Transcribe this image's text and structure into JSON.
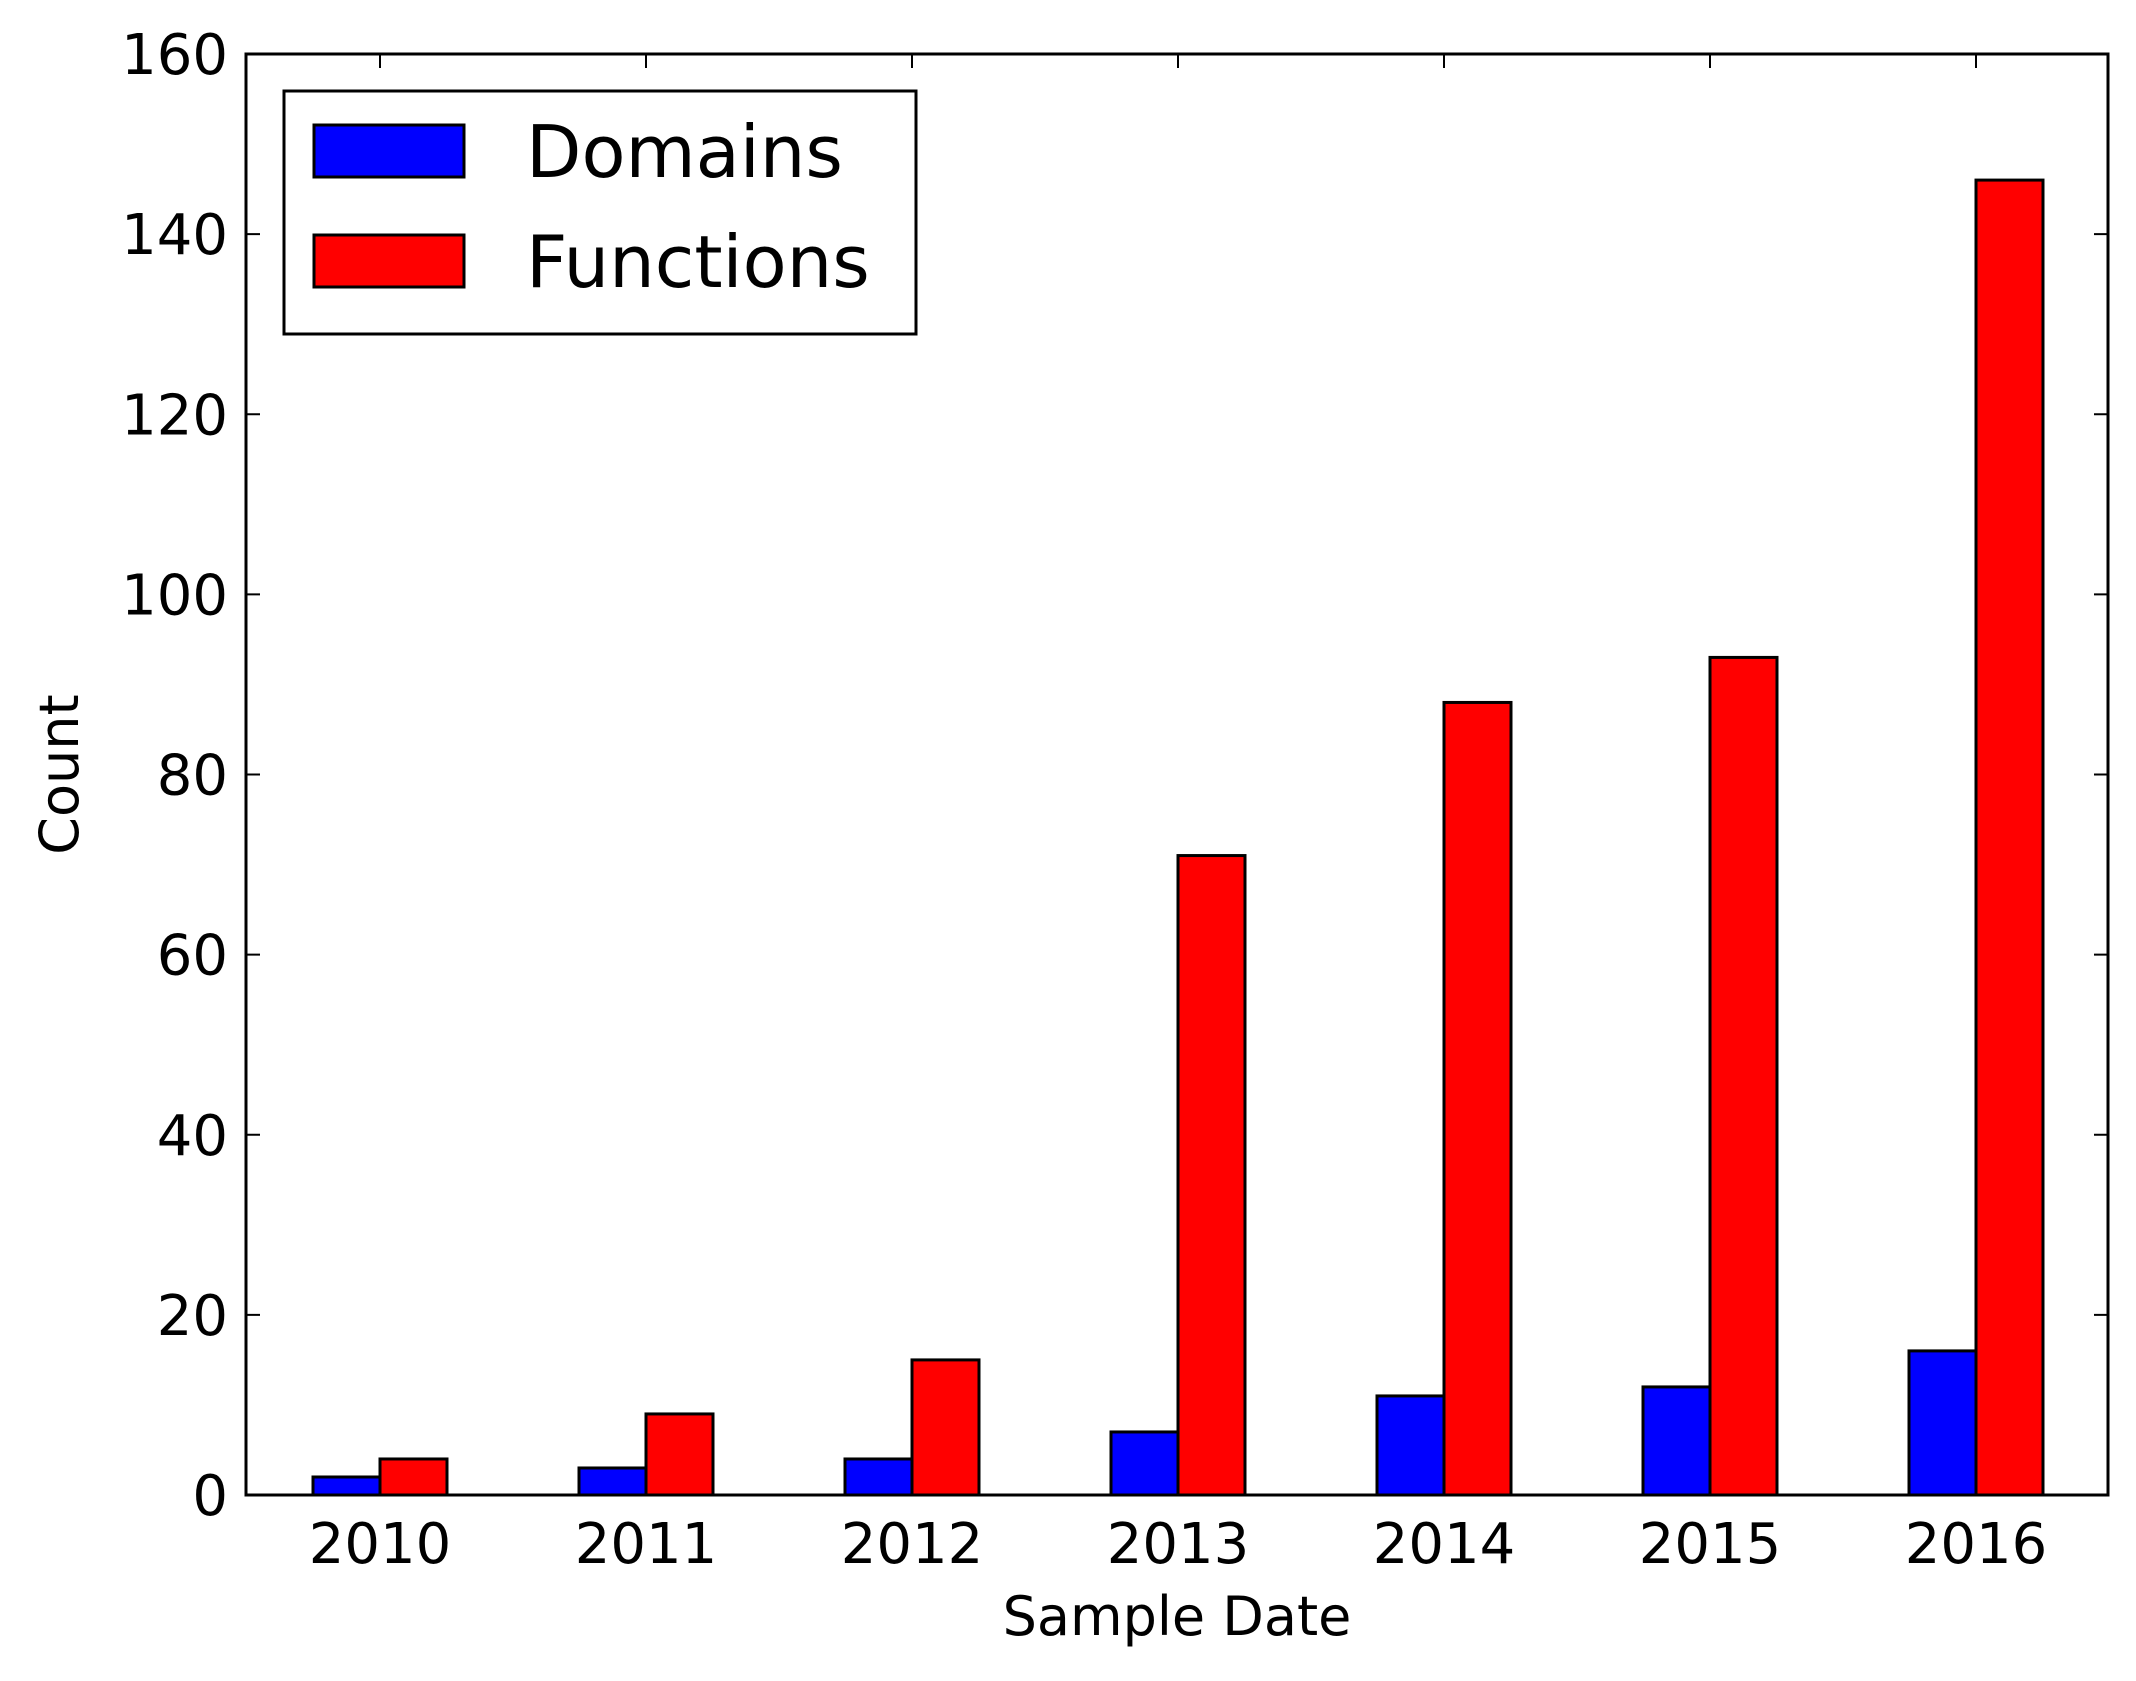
{
  "chart_data": {
    "type": "bar",
    "title": "",
    "xlabel": "Sample Date",
    "ylabel": "Count",
    "categories": [
      "2010",
      "2011",
      "2012",
      "2013",
      "2014",
      "2015",
      "2016"
    ],
    "series": [
      {
        "name": "Domains",
        "color": "#0000ff",
        "values": [
          2,
          3,
          4,
          7,
          11,
          12,
          16
        ]
      },
      {
        "name": "Functions",
        "color": "#ff0000",
        "values": [
          4,
          9,
          15,
          71,
          88,
          93,
          146
        ]
      }
    ],
    "ylim": [
      0,
      160
    ],
    "yticks": [
      "0",
      "20",
      "40",
      "60",
      "80",
      "100",
      "120",
      "140",
      "160"
    ],
    "grid": false,
    "legend_position": "top-left"
  }
}
